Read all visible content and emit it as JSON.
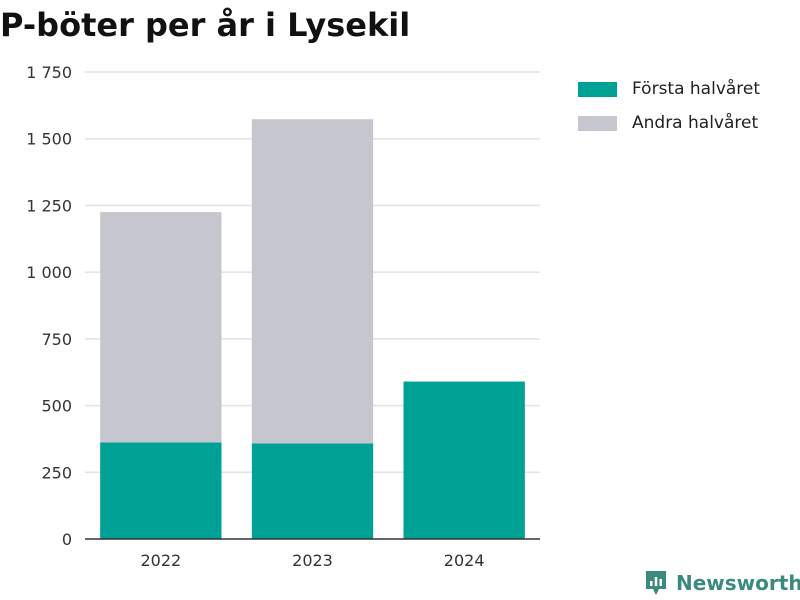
{
  "title": "P-böter per år i Lysekil",
  "brand": {
    "name": "Newsworthy"
  },
  "chart_data": {
    "type": "bar",
    "stacked": true,
    "categories": [
      "2022",
      "2023",
      "2024"
    ],
    "series": [
      {
        "name": "Första halvåret",
        "color": "#00a195",
        "values": [
          362,
          358,
          590
        ]
      },
      {
        "name": "Andra halvåret",
        "color": "#c6c6ce",
        "values": [
          863,
          1215,
          0
        ]
      }
    ],
    "ylim": [
      0,
      1750
    ],
    "yticks": [
      0,
      250,
      500,
      750,
      1000,
      1250,
      1500,
      1750
    ],
    "ytick_labels": [
      "0",
      "250",
      "500",
      "750",
      "1 000",
      "1 250",
      "1 500",
      "1 750"
    ],
    "grid": true,
    "legend_position": "top-right"
  }
}
